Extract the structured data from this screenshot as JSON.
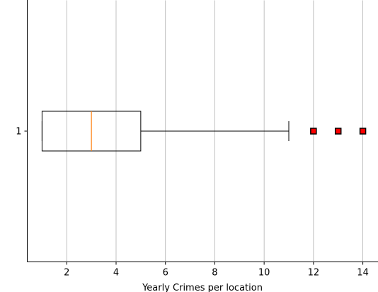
{
  "chart_data": {
    "type": "boxplot",
    "orientation": "horizontal",
    "title": "",
    "xlabel": "Yearly Crimes per location",
    "ylabel": "",
    "xlim": [
      0.4,
      14.6
    ],
    "ylim": [
      0.5,
      1.5
    ],
    "x_ticks": [
      2,
      4,
      6,
      8,
      10,
      12,
      14
    ],
    "y_ticks": [
      1
    ],
    "grid": "vertical",
    "box": {
      "position": 1,
      "whisker_low": 1,
      "q1": 1,
      "median": 3,
      "q3": 5,
      "whisker_high": 11,
      "outliers": [
        12,
        13,
        14
      ]
    },
    "colors": {
      "box": "#000000",
      "median": "#ff7f0e",
      "grid": "#b0b0b0",
      "outlier_face": "#ff0000",
      "outlier_edge": "#000000"
    }
  }
}
